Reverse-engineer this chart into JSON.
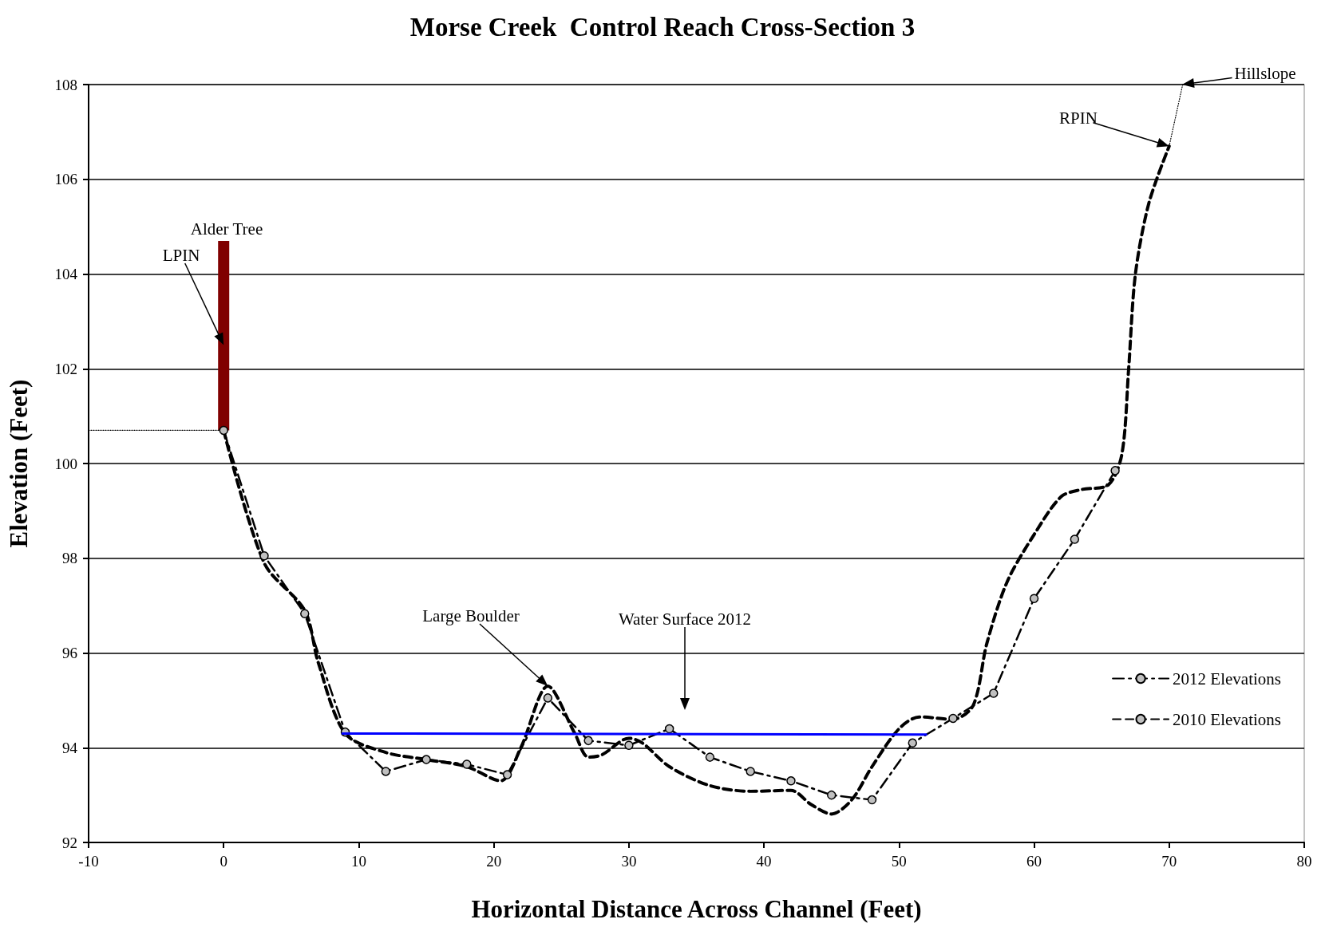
{
  "chart_data": {
    "type": "line",
    "title": "Morse Creek  Control Reach Cross-Section 3",
    "xlabel": "Horizontal Distance Across Channel (Feet)",
    "ylabel": "Elevation (Feet)",
    "xlim": [
      -10,
      80
    ],
    "xticks": [
      -10,
      0,
      10,
      20,
      30,
      40,
      50,
      60,
      70,
      80
    ],
    "ylim": [
      92,
      108
    ],
    "yticks": [
      92,
      94,
      96,
      98,
      100,
      102,
      104,
      106,
      108
    ],
    "grid": "y",
    "legend": "bottom right",
    "series": [
      {
        "name": "2012 Elevations",
        "color": "#000000",
        "marker": "circle",
        "line_style": "dashdot",
        "x": [
          0,
          3,
          6,
          9,
          12,
          15,
          18,
          21,
          24,
          27,
          30,
          33,
          36,
          39,
          42,
          45,
          48,
          51,
          54,
          57,
          60,
          63,
          66
        ],
        "values": [
          100.7,
          98.05,
          96.83,
          94.33,
          93.5,
          93.75,
          93.65,
          93.43,
          95.05,
          94.15,
          94.05,
          94.4,
          93.8,
          93.5,
          93.3,
          93.0,
          92.9,
          94.1,
          94.62,
          95.15,
          97.15,
          98.4,
          99.85
        ]
      },
      {
        "name": "2010 Elevations",
        "color": "#000000",
        "marker": "none",
        "line_style": "dashed",
        "x": [
          0,
          3,
          6,
          7,
          9,
          12,
          15,
          18,
          20.5,
          22,
          24,
          26,
          27,
          28,
          30,
          31,
          33,
          36,
          39,
          42,
          43.5,
          45,
          46.5,
          48,
          50,
          51.5,
          54,
          55.5,
          56.5,
          58,
          60,
          62,
          63.5,
          65.5,
          66.5,
          67,
          67.5,
          68.5,
          70
        ],
        "values": [
          100.7,
          97.9,
          96.9,
          95.8,
          94.3,
          93.9,
          93.75,
          93.6,
          93.3,
          94.0,
          95.3,
          94.3,
          93.8,
          93.85,
          94.2,
          94.1,
          93.6,
          93.2,
          93.08,
          93.1,
          92.8,
          92.6,
          92.9,
          93.6,
          94.4,
          94.65,
          94.6,
          94.9,
          96.2,
          97.5,
          98.5,
          99.3,
          99.45,
          99.55,
          100.2,
          102,
          104,
          105.5,
          106.7
        ]
      },
      {
        "color": "#0000ff",
        "marker": "none",
        "line_style": "solid",
        "x": [
          8.8,
          52
        ],
        "values": [
          94.3,
          94.28
        ]
      },
      {
        "color": "#800000",
        "marker": "none",
        "line_style": "solid",
        "x": [
          0,
          0
        ],
        "values": [
          100.7,
          104.7
        ]
      },
      {
        "color": "#000000",
        "marker": "none",
        "line_style": "dotted",
        "x": [
          -10,
          0
        ],
        "values": [
          100.7,
          100.7
        ]
      },
      {
        "color": "#000000",
        "marker": "none",
        "line_style": "dotted",
        "x": [
          70,
          71
        ],
        "values": [
          106.7,
          108
        ]
      }
    ],
    "annotations": [
      {
        "text": "LPIN",
        "x": 0,
        "y": 102.5
      },
      {
        "text": "Alder Tree",
        "x": 0,
        "y": 104.7
      },
      {
        "text": "Large Boulder",
        "x": 24,
        "y": 95.3
      },
      "Water Surface 2012",
      {
        "text": "RPIN",
        "x": 70,
        "y": 106.7
      },
      "Hillslope"
    ]
  }
}
